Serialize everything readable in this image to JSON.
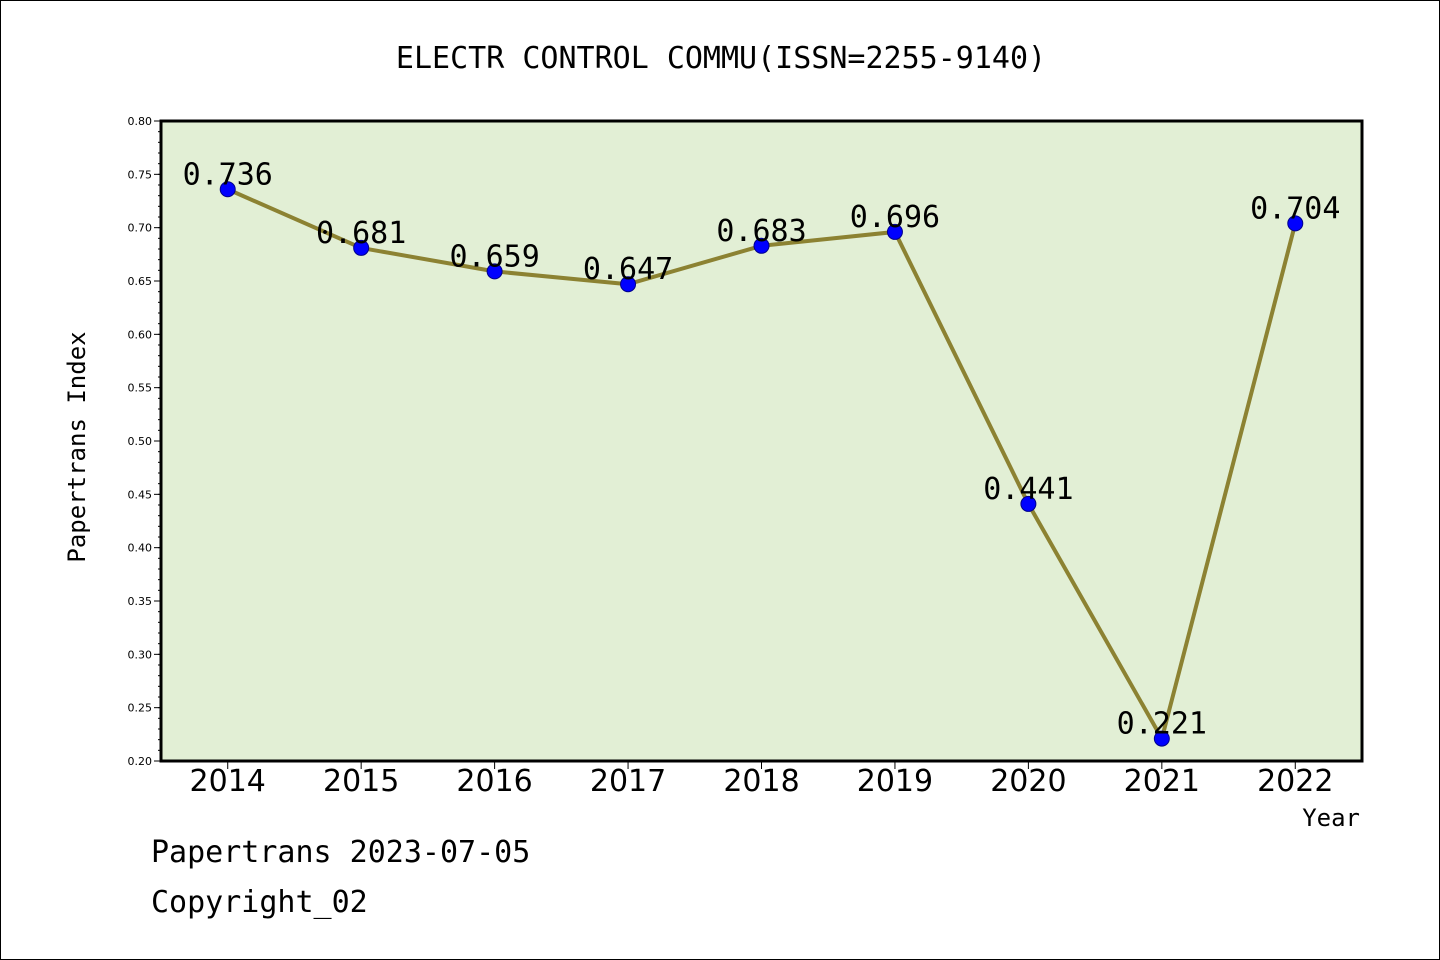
{
  "chart_data": {
    "type": "line",
    "title": "ELECTR CONTROL COMMU(ISSN=2255-9140)",
    "xlabel": "Year",
    "ylabel": "Papertrans Index",
    "categories": [
      "2014",
      "2015",
      "2016",
      "2017",
      "2018",
      "2019",
      "2020",
      "2021",
      "2022"
    ],
    "values": [
      0.736,
      0.681,
      0.659,
      0.647,
      0.683,
      0.696,
      0.441,
      0.221,
      0.704
    ],
    "data_labels": [
      "0.736",
      "0.681",
      "0.659",
      "0.647",
      "0.683",
      "0.696",
      "0.441",
      "0.221",
      "0.704"
    ],
    "ylim": [
      0.2,
      0.8
    ],
    "yticks": [
      "0.20",
      "0.25",
      "0.30",
      "0.35",
      "0.40",
      "0.45",
      "0.50",
      "0.55",
      "0.60",
      "0.65",
      "0.70",
      "0.75",
      "0.80"
    ],
    "grid": false,
    "colors": {
      "plot_background": "#e2efd5",
      "line": "#8c8232",
      "marker": "#0000ff"
    }
  },
  "footer": {
    "line1": "Papertrans 2023-07-05",
    "line2": "Copyright_02"
  }
}
